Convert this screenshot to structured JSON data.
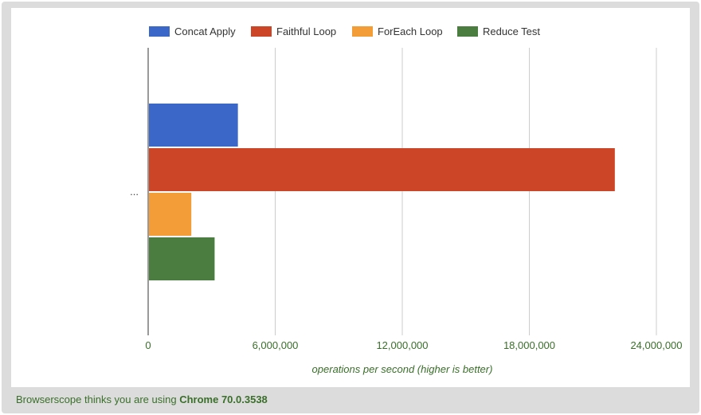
{
  "chart_data": {
    "type": "bar",
    "orientation": "horizontal",
    "categories": [
      "..."
    ],
    "series": [
      {
        "name": "Concat Apply",
        "color": "#3b67c9",
        "values": [
          4200000
        ]
      },
      {
        "name": "Faithful Loop",
        "color": "#cc4527",
        "values": [
          22000000
        ]
      },
      {
        "name": "ForEach Loop",
        "color": "#f39d38",
        "values": [
          2000000
        ]
      },
      {
        "name": "Reduce Test",
        "color": "#4a7d3f",
        "values": [
          3100000
        ]
      }
    ],
    "xlim": [
      0,
      24000000
    ],
    "x_ticks": [
      0,
      6000000,
      12000000,
      18000000,
      24000000
    ],
    "x_tick_labels": [
      "0",
      "6,000,000",
      "12,000,000",
      "18,000,000",
      "24,000,000"
    ],
    "xlabel": "operations per second (higher is better)",
    "legend_position": "top",
    "grid": true
  },
  "footer": {
    "prefix": "Browserscope thinks you are using ",
    "browser": "Chrome 70.0.3538"
  }
}
